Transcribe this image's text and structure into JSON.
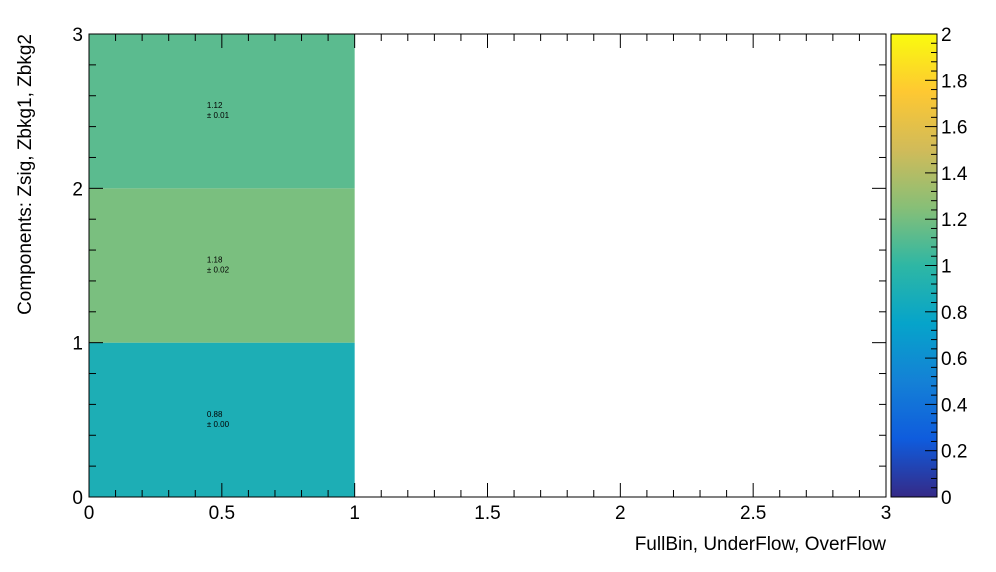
{
  "chart_data": {
    "type": "heatmap",
    "title": "",
    "xlabel": "FullBin, UnderFlow, OverFlow",
    "ylabel": "Components: Zsig, Zbkg1, Zbkg2",
    "xlim": [
      0,
      3
    ],
    "ylim": [
      0,
      3
    ],
    "x_ticks": [
      "0",
      "0.5",
      "1",
      "1.5",
      "2",
      "2.5",
      "3"
    ],
    "y_ticks": [
      "0",
      "1",
      "2",
      "3"
    ],
    "colorbar": {
      "range": [
        0,
        2
      ],
      "ticks": [
        "0",
        "0.2",
        "0.4",
        "0.6",
        "0.8",
        "1",
        "1.2",
        "1.4",
        "1.6",
        "1.8",
        "2"
      ],
      "colors": [
        "#352a87",
        "#0f5cdd",
        "#1481d6",
        "#06a4ca",
        "#2eb7a4",
        "#87bf77",
        "#d1bb59",
        "#fec832",
        "#f9fb0e"
      ]
    },
    "cells": [
      {
        "x": [
          0,
          1
        ],
        "y": [
          0,
          1
        ],
        "value": 0.88,
        "label": "0.88",
        "error_label": "± 0.00",
        "color": "#1daeb5"
      },
      {
        "x": [
          0,
          1
        ],
        "y": [
          1,
          2
        ],
        "value": 1.18,
        "label": "1.18",
        "error_label": "± 0.02",
        "color": "#7abf7f"
      },
      {
        "x": [
          0,
          1
        ],
        "y": [
          2,
          3
        ],
        "value": 1.12,
        "label": "1.12",
        "error_label": "± 0.01",
        "color": "#5bbb8f"
      }
    ]
  }
}
